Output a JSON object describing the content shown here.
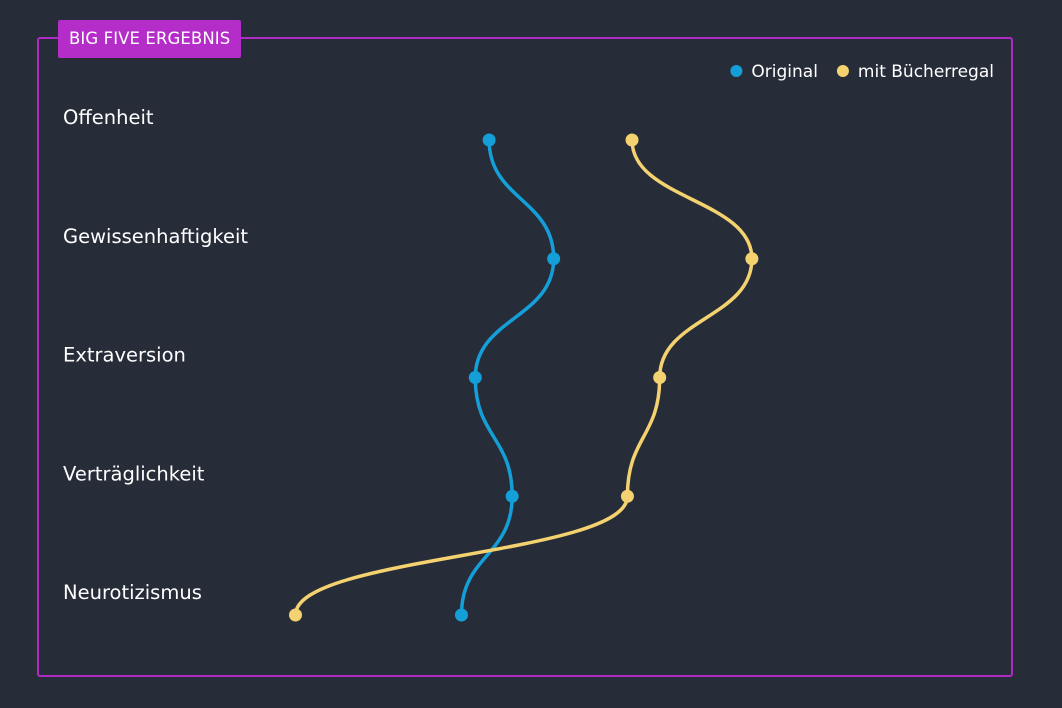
{
  "badge": {
    "label": "BIG FIVE ERGEBNIS"
  },
  "chart_data": {
    "type": "line",
    "orientation": "horizontal-profile",
    "title": "BIG FIVE ERGEBNIS",
    "categories": [
      "Offenheit",
      "Gewissenhaftigkeit",
      "Extraversion",
      "Verträglichkeit",
      "Neurotizismus"
    ],
    "xlim": [
      0,
      1
    ],
    "series": [
      {
        "name": "Original",
        "color": "#149fd8",
        "values": [
          0.46,
          0.53,
          0.445,
          0.485,
          0.43
        ]
      },
      {
        "name": "mit Bücherregal",
        "color": "#f5d270",
        "values": [
          0.615,
          0.745,
          0.645,
          0.61,
          0.25
        ]
      }
    ],
    "legend": {
      "position": "top-right"
    },
    "grid": false
  }
}
